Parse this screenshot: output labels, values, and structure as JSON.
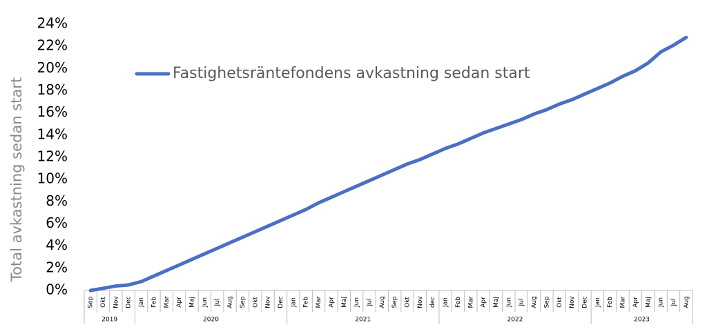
{
  "chart_data": {
    "type": "line",
    "y_axis_title": "Total avkastning sedan start",
    "category_groups": [
      {
        "label": "2019",
        "categories": [
          "Sep",
          "Okt",
          "Nov",
          "Dec"
        ]
      },
      {
        "label": "2020",
        "categories": [
          "Jan",
          "Feb",
          "Mar",
          "Apr",
          "Maj",
          "Jun",
          "Jul",
          "Aug",
          "Sep",
          "Okt",
          "Nov",
          "Dec"
        ]
      },
      {
        "label": "2021",
        "categories": [
          "Jan",
          "Feb",
          "Mar",
          "Apr",
          "Maj",
          "Jun",
          "Jul",
          "Aug",
          "Sep",
          "Okt",
          "Nov",
          "dec"
        ]
      },
      {
        "label": "2022",
        "categories": [
          "Jan",
          "Feb",
          "Mar",
          "Apr",
          "Maj",
          "Jun",
          "Jul",
          "Aug",
          "Sep",
          "Okt",
          "Nov",
          "Dec"
        ]
      },
      {
        "label": "2023",
        "categories": [
          "Jan",
          "Feb",
          "Mar",
          "Apr",
          "Maj",
          "Jun",
          "Jul",
          "Aug"
        ]
      }
    ],
    "series": [
      {
        "name": "Fastighetsräntefondens avkastning sedan start",
        "color": "#4a6fc4",
        "values": [
          0,
          0.2,
          0.4,
          0.5,
          0.8,
          1.3,
          1.8,
          2.3,
          2.8,
          3.3,
          3.8,
          4.3,
          4.8,
          5.3,
          5.8,
          6.3,
          6.8,
          7.3,
          7.9,
          8.4,
          8.9,
          9.4,
          9.9,
          10.4,
          10.9,
          11.4,
          11.8,
          12.3,
          12.8,
          13.2,
          13.7,
          14.2,
          14.6,
          15.0,
          15.4,
          15.9,
          16.3,
          16.8,
          17.2,
          17.7,
          18.2,
          18.7,
          19.3,
          19.8,
          20.5,
          21.5,
          22.1,
          22.8
        ]
      }
    ],
    "ylim": [
      0,
      24
    ],
    "yticks": [
      {
        "value": 0,
        "label": "0%"
      },
      {
        "value": 2,
        "label": "2%"
      },
      {
        "value": 4,
        "label": "4%"
      },
      {
        "value": 6,
        "label": "6%"
      },
      {
        "value": 8,
        "label": "8%"
      },
      {
        "value": 10,
        "label": "10%"
      },
      {
        "value": 12,
        "label": "12%"
      },
      {
        "value": 14,
        "label": "14%"
      },
      {
        "value": 16,
        "label": "16%"
      },
      {
        "value": 18,
        "label": "18%"
      },
      {
        "value": 20,
        "label": "20%"
      },
      {
        "value": 22,
        "label": "22%"
      },
      {
        "value": 24,
        "label": "24%"
      }
    ],
    "grid": false
  }
}
